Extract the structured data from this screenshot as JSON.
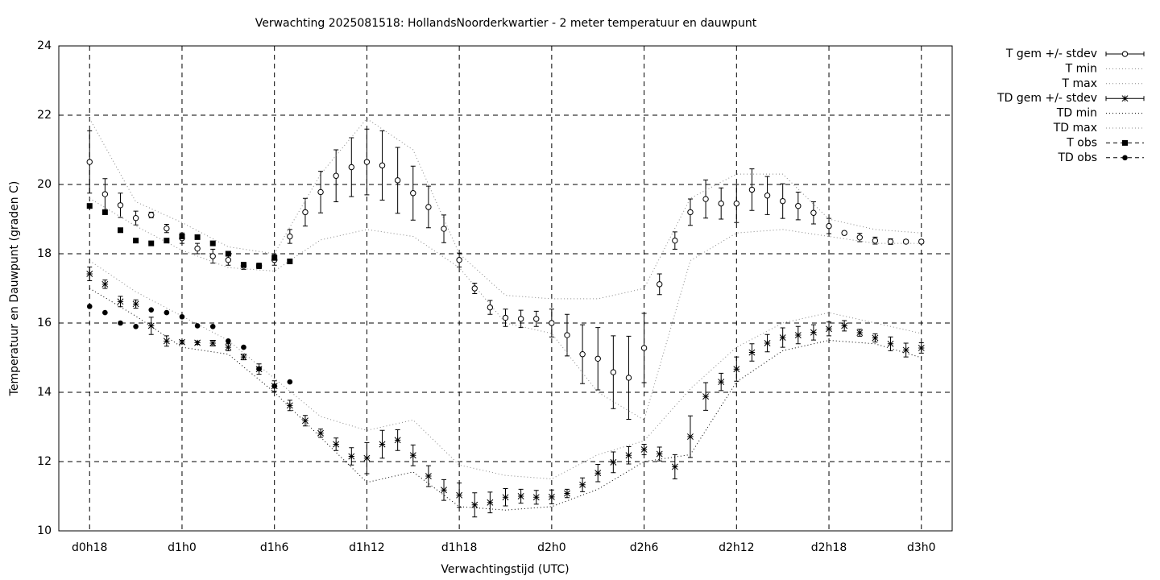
{
  "chart_data": {
    "type": "errorbar",
    "title": "Verwachting 2025081518: HollandsNoorderkwartier - 2 meter temperatuur en dauwpunt",
    "xlabel": "Verwachtingstijd (UTC)",
    "ylabel": "Temperatuur en Dauwpunt (graden C)",
    "x": [
      0,
      1,
      2,
      3,
      4,
      5,
      6,
      7,
      8,
      9,
      10,
      11,
      12,
      13,
      14,
      15,
      16,
      17,
      18,
      19,
      20,
      21,
      22,
      23,
      24,
      25,
      26,
      27,
      28,
      29,
      30,
      31,
      32,
      33,
      34,
      35,
      36,
      37,
      38,
      39,
      40,
      41,
      42,
      43,
      44,
      45,
      46,
      47,
      48,
      49,
      50,
      51,
      52,
      53,
      54
    ],
    "xlim": [
      -2,
      56
    ],
    "xticks": [
      {
        "value": 0,
        "label": "d0h18"
      },
      {
        "value": 6,
        "label": "d1h0"
      },
      {
        "value": 12,
        "label": "d1h6"
      },
      {
        "value": 18,
        "label": "d1h12"
      },
      {
        "value": 24,
        "label": "d1h18"
      },
      {
        "value": 30,
        "label": "d2h0"
      },
      {
        "value": 36,
        "label": "d2h6"
      },
      {
        "value": 42,
        "label": "d2h12"
      },
      {
        "value": 48,
        "label": "d2h18"
      },
      {
        "value": 54,
        "label": "d3h0"
      }
    ],
    "ylim": [
      10,
      24
    ],
    "yticks": [
      10,
      12,
      14,
      16,
      18,
      20,
      22,
      24
    ],
    "grid": true,
    "legend": "outside-right",
    "series": [
      {
        "name": "T gem +/- stdev",
        "color": "#000000",
        "style": "errorbars",
        "marker": "circle",
        "values": [
          20.65,
          19.72,
          19.4,
          19.03,
          19.12,
          18.73,
          18.45,
          18.15,
          17.93,
          17.82,
          17.65,
          17.65,
          17.82,
          18.5,
          19.2,
          19.78,
          20.25,
          20.5,
          20.65,
          20.55,
          20.12,
          19.75,
          19.35,
          18.72,
          17.82,
          17.0,
          16.45,
          16.15,
          16.12,
          16.12,
          16.0,
          15.65,
          15.1,
          14.97,
          14.58,
          14.42,
          15.28,
          17.12,
          18.38,
          19.2,
          19.58,
          19.45,
          19.45,
          19.85,
          19.68,
          19.52,
          19.38,
          19.18,
          18.8,
          18.6,
          18.47,
          18.38,
          18.35,
          18.35,
          18.35
        ],
        "errors": [
          0.9,
          0.45,
          0.35,
          0.2,
          0.08,
          0.12,
          0.15,
          0.15,
          0.2,
          0.15,
          0.1,
          0.08,
          0.15,
          0.2,
          0.4,
          0.6,
          0.75,
          0.85,
          0.95,
          1.0,
          0.95,
          0.78,
          0.6,
          0.4,
          0.2,
          0.15,
          0.2,
          0.25,
          0.25,
          0.22,
          0.4,
          0.6,
          0.85,
          0.9,
          1.05,
          1.2,
          1.0,
          0.3,
          0.25,
          0.38,
          0.55,
          0.45,
          0.55,
          0.6,
          0.55,
          0.5,
          0.4,
          0.32,
          0.22,
          0.05,
          0.12,
          0.1,
          0.08,
          0.05,
          0.05
        ]
      },
      {
        "name": "T min",
        "color": "#888888",
        "style": "dotted",
        "x": [
          0,
          3,
          6,
          9,
          12,
          15,
          18,
          21,
          24,
          27,
          30,
          33,
          36,
          39,
          42,
          45,
          48,
          51,
          54
        ],
        "values": [
          19.6,
          18.8,
          18.1,
          17.6,
          17.5,
          18.4,
          18.7,
          18.5,
          17.6,
          16.0,
          15.7,
          14.0,
          13.2,
          17.8,
          18.6,
          18.7,
          18.5,
          18.3,
          18.3
        ]
      },
      {
        "name": "T max",
        "color": "#888888",
        "style": "dotted",
        "x": [
          0,
          3,
          6,
          9,
          12,
          15,
          18,
          21,
          24,
          27,
          30,
          33,
          36,
          39,
          42,
          45,
          48,
          51,
          54
        ],
        "values": [
          21.9,
          19.5,
          18.9,
          18.2,
          18.0,
          20.3,
          21.9,
          21.0,
          18.0,
          16.8,
          16.7,
          16.7,
          17.0,
          19.6,
          20.3,
          20.3,
          19.0,
          18.7,
          18.6
        ]
      },
      {
        "name": "TD gem +/- stdev",
        "color": "#000000",
        "style": "errorbars",
        "marker": "star",
        "values": [
          17.42,
          17.12,
          16.62,
          16.55,
          15.92,
          15.48,
          15.45,
          15.43,
          15.42,
          15.3,
          15.02,
          14.67,
          14.18,
          13.62,
          13.18,
          12.82,
          12.5,
          12.15,
          12.1,
          12.5,
          12.62,
          12.18,
          11.58,
          11.18,
          11.03,
          10.75,
          10.82,
          10.97,
          11.0,
          10.97,
          10.98,
          11.08,
          11.33,
          11.67,
          11.98,
          12.18,
          12.35,
          12.22,
          11.85,
          12.72,
          13.88,
          14.3,
          14.67,
          15.15,
          15.42,
          15.58,
          15.65,
          15.73,
          15.83,
          15.92,
          15.72,
          15.57,
          15.4,
          15.22,
          15.28
        ],
        "errors": [
          0.2,
          0.12,
          0.15,
          0.12,
          0.25,
          0.15,
          0.05,
          0.05,
          0.08,
          0.1,
          0.08,
          0.15,
          0.15,
          0.15,
          0.15,
          0.12,
          0.18,
          0.25,
          0.45,
          0.4,
          0.3,
          0.3,
          0.3,
          0.3,
          0.35,
          0.35,
          0.3,
          0.25,
          0.2,
          0.2,
          0.2,
          0.12,
          0.2,
          0.25,
          0.3,
          0.25,
          0.15,
          0.2,
          0.35,
          0.6,
          0.4,
          0.25,
          0.35,
          0.25,
          0.25,
          0.28,
          0.25,
          0.22,
          0.2,
          0.15,
          0.1,
          0.12,
          0.2,
          0.2,
          0.15
        ]
      },
      {
        "name": "TD min",
        "color": "#000000",
        "style": "dotted",
        "x": [
          0,
          3,
          6,
          9,
          12,
          15,
          18,
          21,
          24,
          27,
          30,
          33,
          36,
          39,
          42,
          45,
          48,
          51,
          54
        ],
        "values": [
          17.0,
          16.2,
          15.3,
          15.1,
          14.0,
          12.7,
          11.4,
          11.7,
          10.7,
          10.6,
          10.7,
          11.2,
          12.0,
          12.2,
          14.3,
          15.2,
          15.5,
          15.4,
          15.0
        ]
      },
      {
        "name": "TD max",
        "color": "#888888",
        "style": "dotted",
        "x": [
          0,
          3,
          6,
          9,
          12,
          15,
          18,
          21,
          24,
          27,
          30,
          33,
          36,
          39,
          42,
          45,
          48,
          51,
          54
        ],
        "values": [
          17.8,
          16.9,
          16.2,
          15.5,
          14.4,
          13.3,
          12.9,
          13.2,
          11.9,
          11.6,
          11.5,
          12.2,
          12.6,
          14.1,
          15.3,
          16.0,
          16.3,
          16.0,
          15.7
        ]
      },
      {
        "name": "T obs",
        "color": "#000000",
        "style": "points",
        "marker": "square",
        "x": [
          0,
          1,
          2,
          3,
          4,
          5,
          6,
          7,
          8,
          9,
          10,
          11,
          12,
          13
        ],
        "values": [
          19.38,
          19.2,
          18.68,
          18.38,
          18.3,
          18.38,
          18.5,
          18.48,
          18.3,
          18.0,
          17.68,
          17.65,
          17.88,
          17.78
        ]
      },
      {
        "name": "TD obs",
        "color": "#000000",
        "style": "points",
        "marker": "dot",
        "x": [
          0,
          1,
          2,
          3,
          4,
          5,
          6,
          7,
          8,
          9,
          10,
          11,
          12,
          13
        ],
        "values": [
          16.48,
          16.3,
          16.0,
          15.9,
          16.38,
          16.3,
          16.18,
          15.92,
          15.9,
          15.48,
          15.3,
          14.68,
          14.18,
          14.3
        ]
      }
    ]
  }
}
